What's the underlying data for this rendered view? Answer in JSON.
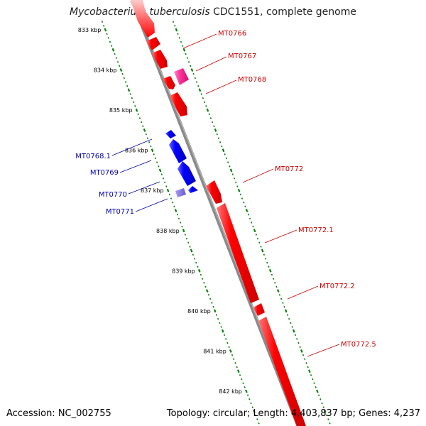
{
  "title": {
    "organism": "Mycobacterium tuberculosis",
    "rest": " CDC1551, complete genome"
  },
  "footer": {
    "accession": "Accession: NC_002755",
    "summary": "Topology: circular; Length: 4,403,837 bp; Genes: 4,237"
  },
  "colors": {
    "forward": "#ff0000",
    "reverse": "#0000ff",
    "magenta": "#ff3399",
    "reverse_light": "#7b68ee",
    "backbone": "#888888",
    "tick": "#008000",
    "forward_label": "#cc0000",
    "reverse_label": "#0000aa"
  },
  "axis_labels": [
    "833 kbp",
    "834 kbp",
    "835 kbp",
    "836 kbp",
    "837 kbp",
    "838 kbp",
    "839 kbp",
    "840 kbp",
    "841 kbp",
    "842 kbp"
  ],
  "gene_labels": {
    "forward": [
      "MT0766",
      "MT0767",
      "MT0768",
      "MT0772",
      "MT0772.1",
      "MT0772.2",
      "MT0772.5"
    ],
    "reverse": [
      "MT0768.1",
      "MT0769",
      "MT0770",
      "MT0771"
    ]
  }
}
